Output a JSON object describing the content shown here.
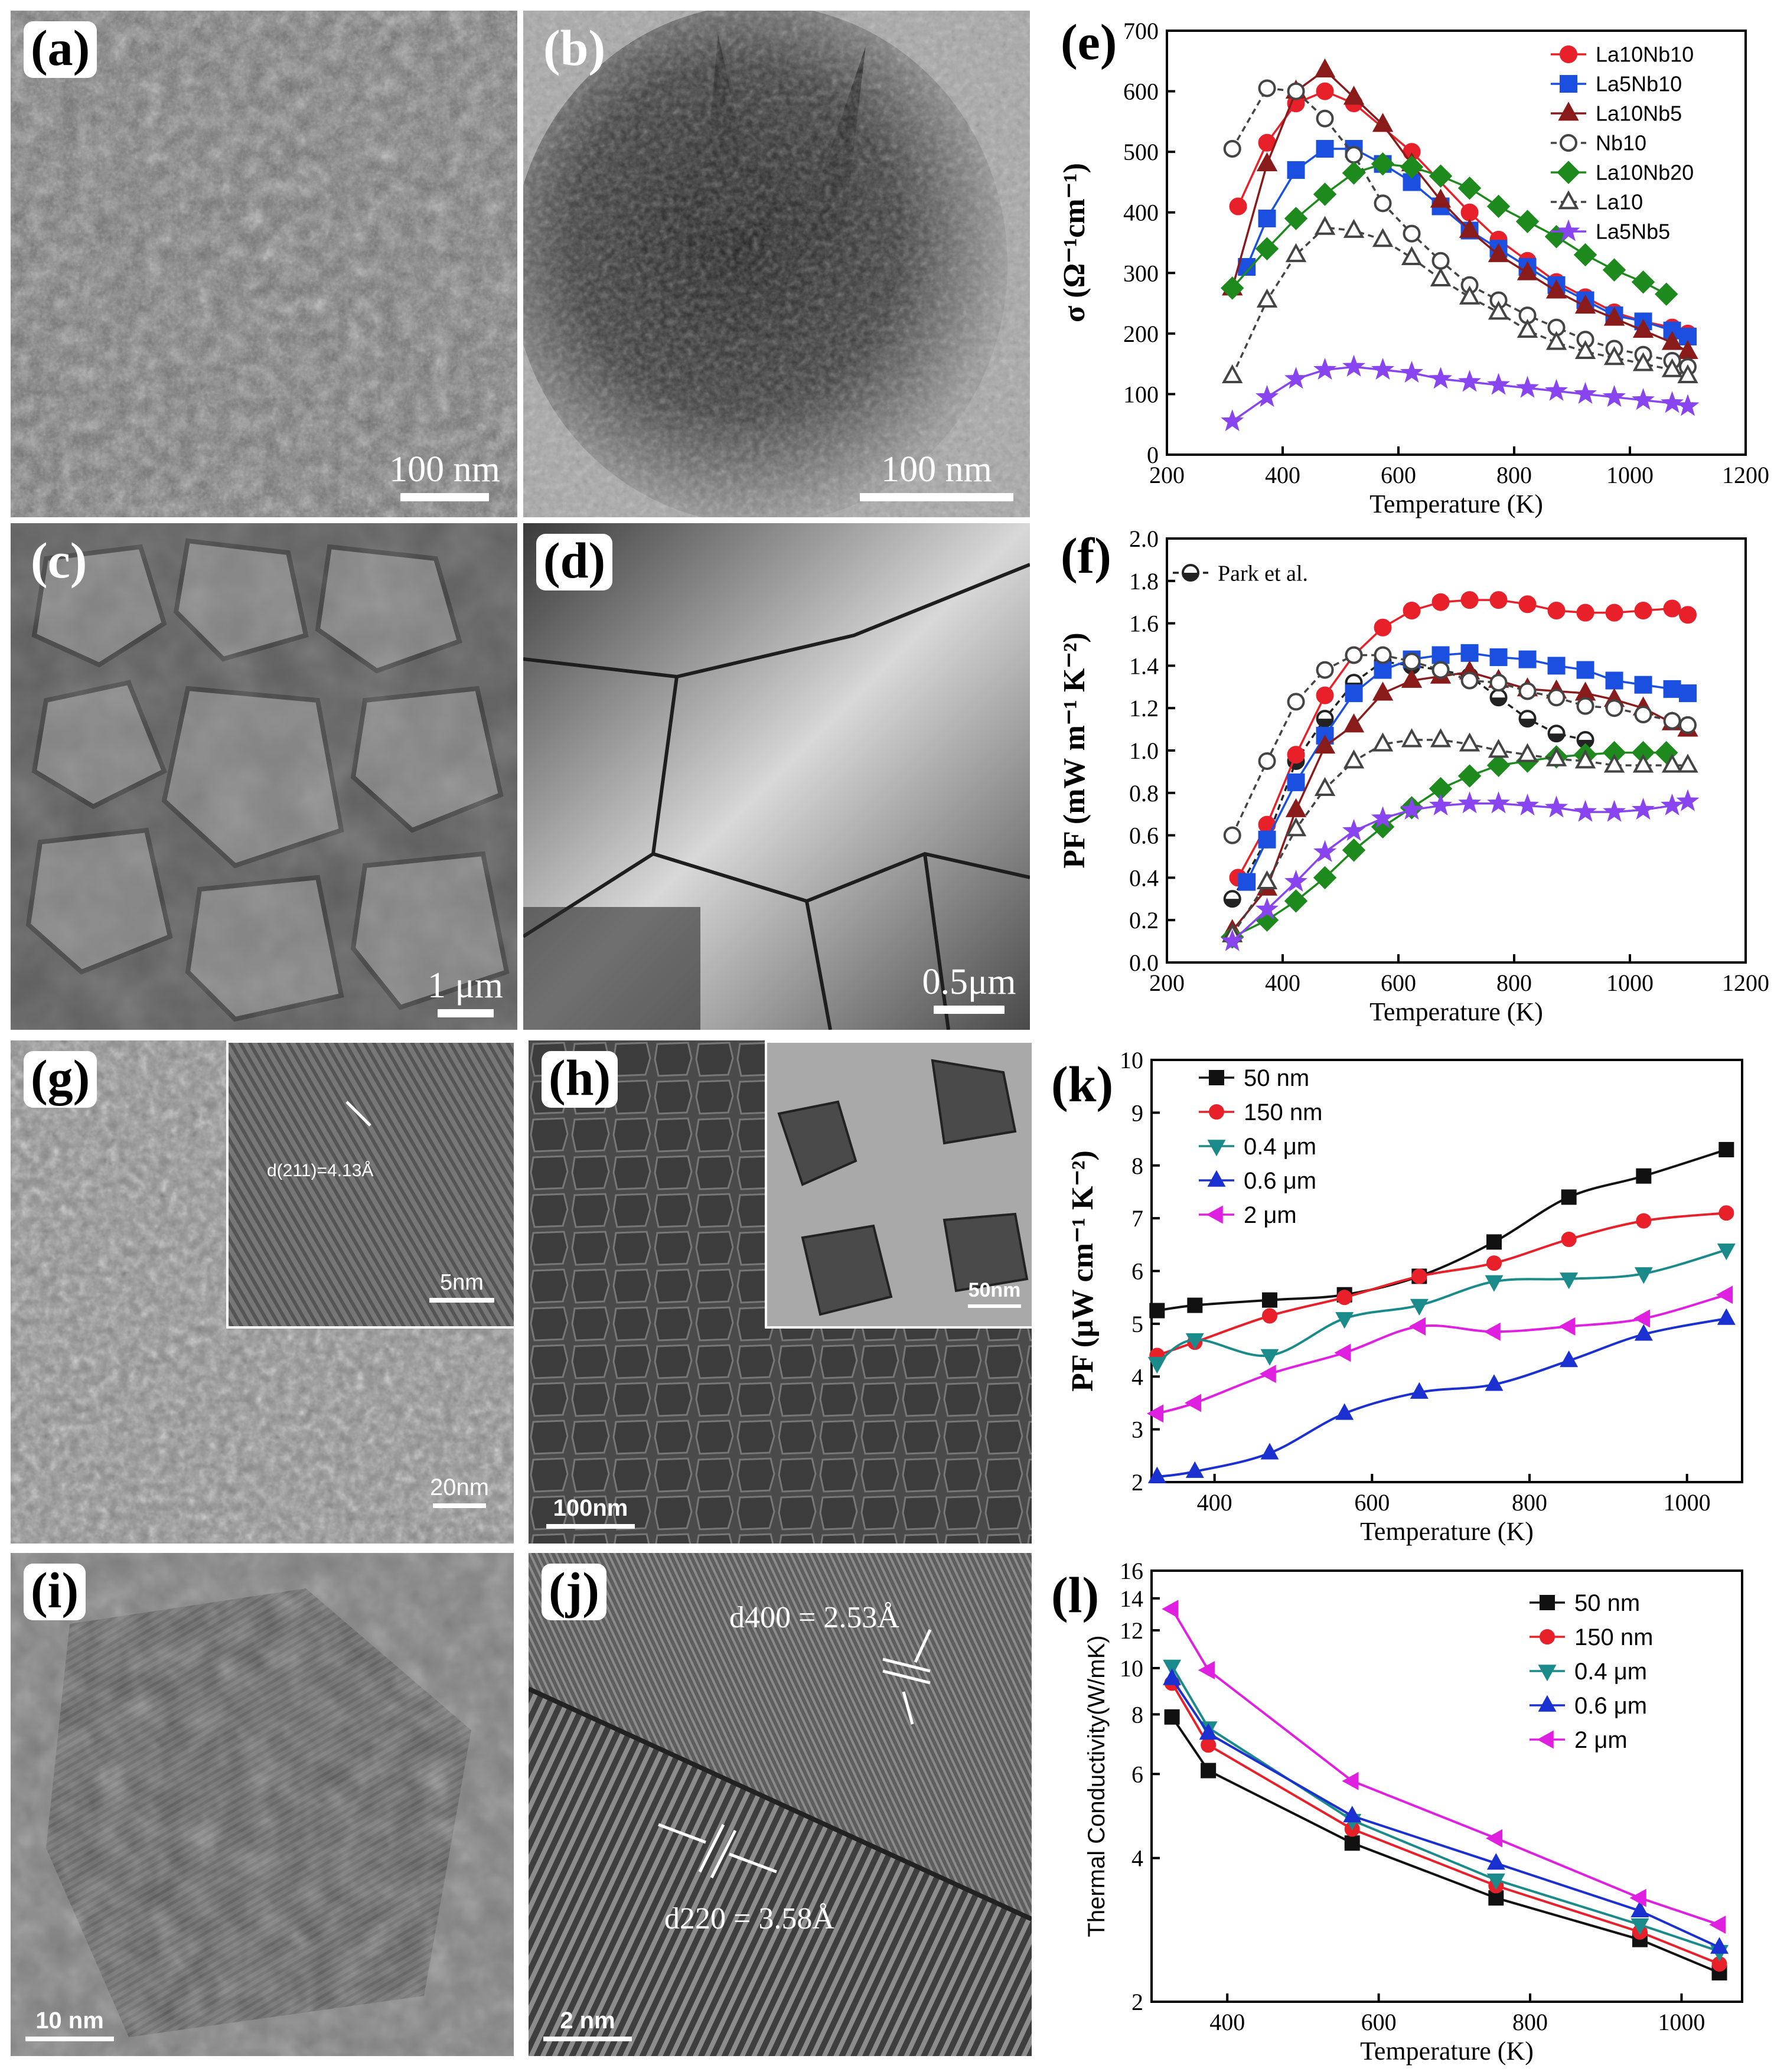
{
  "panels": {
    "a": {
      "label": "(a)",
      "scale": "100 nm"
    },
    "b": {
      "label": "(b)",
      "scale": "100 nm"
    },
    "c": {
      "label": "(c)",
      "scale": "1 μm"
    },
    "d": {
      "label": "(d)",
      "scale": "0.5μm"
    },
    "g": {
      "label": "(g)",
      "scale": "20nm",
      "inset_scale": "5nm",
      "inset_annotation": "d(211)=4.13Å"
    },
    "h": {
      "label": "(h)",
      "scale": "100nm",
      "inset_scale": "50nm"
    },
    "i": {
      "label": "(i)",
      "scale": "10 nm"
    },
    "j": {
      "label": "(j)",
      "scale": "2 nm",
      "annot1": "d400 = 2.53Å",
      "annot2": "d220 = 3.58Å"
    }
  },
  "chart_data": [
    {
      "id": "e",
      "panel_label": "(e)",
      "type": "line",
      "xlabel": "Temperature (K)",
      "ylabel": "σ (Ω⁻¹cm⁻¹)",
      "xlim": [
        200,
        1200
      ],
      "ylim": [
        0,
        700
      ],
      "xticks": [
        200,
        400,
        600,
        800,
        1000,
        1200
      ],
      "yticks": [
        0,
        100,
        200,
        300,
        400,
        500,
        600,
        700
      ],
      "legend_position": "top-right",
      "series": [
        {
          "name": "La10Nb10",
          "color": "#e8202a",
          "marker": "circle",
          "filled": true,
          "dashed": false,
          "x": [
            323,
            373,
            423,
            473,
            523,
            623,
            723,
            773,
            823,
            873,
            923,
            973,
            1023,
            1073,
            1100
          ],
          "y": [
            410,
            515,
            580,
            600,
            580,
            500,
            400,
            355,
            320,
            285,
            260,
            235,
            220,
            210,
            200
          ]
        },
        {
          "name": "La5Nb10",
          "color": "#1a4fe0",
          "marker": "square",
          "filled": true,
          "dashed": false,
          "x": [
            338,
            373,
            423,
            473,
            523,
            573,
            623,
            673,
            723,
            773,
            823,
            873,
            923,
            973,
            1023,
            1073,
            1100
          ],
          "y": [
            310,
            390,
            470,
            505,
            505,
            480,
            450,
            410,
            370,
            340,
            310,
            280,
            255,
            230,
            220,
            205,
            195
          ]
        },
        {
          "name": "La10Nb5",
          "color": "#8a1b1b",
          "marker": "triangle",
          "filled": true,
          "dashed": false,
          "x": [
            313,
            373,
            423,
            473,
            523,
            573,
            623,
            673,
            723,
            773,
            823,
            873,
            923,
            973,
            1023,
            1073,
            1100
          ],
          "y": [
            275,
            480,
            600,
            635,
            590,
            545,
            480,
            420,
            370,
            330,
            300,
            270,
            245,
            225,
            205,
            185,
            170
          ]
        },
        {
          "name": "Nb10",
          "color": "#444444",
          "marker": "circle",
          "filled": false,
          "dashed": true,
          "x": [
            313,
            373,
            423,
            473,
            523,
            573,
            623,
            673,
            723,
            773,
            823,
            873,
            923,
            973,
            1023,
            1073,
            1100
          ],
          "y": [
            505,
            605,
            600,
            555,
            495,
            415,
            365,
            320,
            280,
            255,
            230,
            210,
            190,
            175,
            165,
            155,
            145
          ]
        },
        {
          "name": "La10Nb20",
          "color": "#1e8a1e",
          "marker": "diamond",
          "filled": true,
          "dashed": false,
          "x": [
            313,
            373,
            423,
            473,
            523,
            573,
            623,
            673,
            723,
            773,
            823,
            873,
            923,
            973,
            1023,
            1063
          ],
          "y": [
            275,
            340,
            390,
            430,
            465,
            480,
            475,
            460,
            440,
            410,
            385,
            360,
            330,
            305,
            285,
            265
          ]
        },
        {
          "name": "La10",
          "color": "#444444",
          "marker": "triangle",
          "filled": false,
          "dashed": true,
          "x": [
            313,
            373,
            423,
            473,
            523,
            573,
            623,
            673,
            723,
            773,
            823,
            873,
            923,
            973,
            1023,
            1073,
            1100
          ],
          "y": [
            130,
            255,
            330,
            375,
            370,
            355,
            325,
            290,
            260,
            235,
            205,
            185,
            170,
            160,
            150,
            140,
            130
          ]
        },
        {
          "name": "La5Nb5",
          "color": "#8844ee",
          "marker": "star",
          "filled": true,
          "dashed": false,
          "x": [
            313,
            373,
            423,
            473,
            523,
            573,
            623,
            673,
            723,
            773,
            823,
            873,
            923,
            973,
            1023,
            1073,
            1100
          ],
          "y": [
            55,
            95,
            125,
            140,
            145,
            140,
            135,
            125,
            120,
            115,
            110,
            105,
            100,
            95,
            90,
            85,
            80
          ]
        }
      ]
    },
    {
      "id": "f",
      "panel_label": "(f)",
      "type": "line",
      "xlabel": "Temperature (K)",
      "ylabel": "PF (mW m⁻¹ K⁻²)",
      "xlim": [
        200,
        1200
      ],
      "ylim": [
        0.0,
        2.0
      ],
      "xticks": [
        200,
        400,
        600,
        800,
        1000,
        1200
      ],
      "yticks": [
        0.0,
        0.2,
        0.4,
        0.6,
        0.8,
        1.0,
        1.2,
        1.4,
        1.6,
        1.8,
        2.0
      ],
      "legend_position": "top-left",
      "series": [
        {
          "name": "Park et al.",
          "color": "#222222",
          "marker": "halfcircle",
          "filled": false,
          "dashed": true,
          "legend": true,
          "x": [
            313,
            373,
            423,
            473,
            523,
            573,
            623,
            673,
            723,
            773,
            823,
            873,
            923
          ],
          "y": [
            0.3,
            0.58,
            0.95,
            1.15,
            1.32,
            1.42,
            1.4,
            1.38,
            1.35,
            1.25,
            1.15,
            1.08,
            1.05
          ]
        },
        {
          "name": "La10Nb10",
          "color": "#e8202a",
          "marker": "circle",
          "filled": true,
          "dashed": false,
          "legend": false,
          "x": [
            323,
            373,
            423,
            473,
            523,
            573,
            623,
            673,
            723,
            773,
            823,
            873,
            923,
            973,
            1023,
            1073,
            1100
          ],
          "y": [
            0.4,
            0.65,
            0.98,
            1.26,
            1.45,
            1.58,
            1.66,
            1.7,
            1.71,
            1.71,
            1.69,
            1.66,
            1.65,
            1.65,
            1.66,
            1.67,
            1.64
          ]
        },
        {
          "name": "La5Nb10",
          "color": "#1a4fe0",
          "marker": "square",
          "filled": true,
          "dashed": false,
          "legend": false,
          "x": [
            338,
            373,
            423,
            473,
            523,
            573,
            623,
            673,
            723,
            773,
            823,
            873,
            923,
            973,
            1023,
            1073,
            1100
          ],
          "y": [
            0.38,
            0.58,
            0.85,
            1.07,
            1.27,
            1.38,
            1.43,
            1.45,
            1.46,
            1.44,
            1.43,
            1.4,
            1.38,
            1.33,
            1.31,
            1.29,
            1.27
          ]
        },
        {
          "name": "La10Nb5",
          "color": "#8a1b1b",
          "marker": "triangle",
          "filled": true,
          "dashed": false,
          "legend": false,
          "x": [
            313,
            373,
            423,
            473,
            523,
            573,
            623,
            673,
            723,
            773,
            823,
            873,
            923,
            973,
            1023,
            1073,
            1100
          ],
          "y": [
            0.15,
            0.35,
            0.72,
            1.02,
            1.12,
            1.27,
            1.33,
            1.35,
            1.37,
            1.33,
            1.29,
            1.28,
            1.27,
            1.24,
            1.2,
            1.13,
            1.1
          ]
        },
        {
          "name": "Nb10",
          "color": "#444444",
          "marker": "circle",
          "filled": false,
          "dashed": true,
          "legend": false,
          "x": [
            313,
            373,
            423,
            473,
            523,
            573,
            623,
            673,
            723,
            773,
            823,
            873,
            923,
            973,
            1023,
            1073,
            1100
          ],
          "y": [
            0.6,
            0.95,
            1.23,
            1.38,
            1.45,
            1.45,
            1.42,
            1.38,
            1.33,
            1.32,
            1.28,
            1.25,
            1.21,
            1.2,
            1.17,
            1.14,
            1.12
          ]
        },
        {
          "name": "La10Nb20",
          "color": "#1e8a1e",
          "marker": "diamond",
          "filled": true,
          "dashed": false,
          "legend": false,
          "x": [
            313,
            373,
            423,
            473,
            523,
            573,
            623,
            673,
            723,
            773,
            823,
            873,
            923,
            973,
            1023,
            1063
          ],
          "y": [
            0.12,
            0.2,
            0.29,
            0.4,
            0.53,
            0.64,
            0.73,
            0.82,
            0.88,
            0.93,
            0.95,
            0.97,
            0.98,
            0.99,
            0.99,
            0.99
          ]
        },
        {
          "name": "La10",
          "color": "#444444",
          "marker": "triangle",
          "filled": false,
          "dashed": true,
          "legend": false,
          "x": [
            313,
            373,
            423,
            473,
            523,
            573,
            623,
            673,
            723,
            773,
            823,
            873,
            923,
            973,
            1023,
            1073,
            1100
          ],
          "y": [
            0.13,
            0.38,
            0.63,
            0.82,
            0.95,
            1.03,
            1.05,
            1.05,
            1.03,
            1.0,
            0.98,
            0.96,
            0.95,
            0.93,
            0.93,
            0.93,
            0.93
          ]
        },
        {
          "name": "La5Nb5",
          "color": "#8844ee",
          "marker": "star",
          "filled": true,
          "dashed": false,
          "legend": false,
          "x": [
            313,
            373,
            423,
            473,
            523,
            573,
            623,
            673,
            723,
            773,
            823,
            873,
            923,
            973,
            1023,
            1073,
            1100
          ],
          "y": [
            0.1,
            0.25,
            0.38,
            0.52,
            0.62,
            0.68,
            0.72,
            0.74,
            0.75,
            0.75,
            0.74,
            0.73,
            0.71,
            0.71,
            0.72,
            0.74,
            0.76
          ]
        }
      ]
    },
    {
      "id": "k",
      "panel_label": "(k)",
      "type": "line",
      "xlabel": "Temperature (K)",
      "ylabel": "PF (μW cm⁻¹ K⁻²)",
      "xlim": [
        320,
        1070
      ],
      "ylim": [
        2,
        10
      ],
      "xticks": [
        400,
        600,
        800,
        1000
      ],
      "yticks": [
        2,
        3,
        4,
        5,
        6,
        7,
        8,
        9,
        10
      ],
      "legend_position": "top-left",
      "series": [
        {
          "name": "50 nm",
          "color": "#111111",
          "marker": "square",
          "x": [
            327,
            375,
            470,
            565,
            660,
            755,
            850,
            945,
            1050
          ],
          "y": [
            5.25,
            5.35,
            5.45,
            5.55,
            5.9,
            6.55,
            7.4,
            7.8,
            8.3
          ]
        },
        {
          "name": "150 nm",
          "color": "#e8202a",
          "marker": "circle",
          "x": [
            327,
            375,
            470,
            565,
            660,
            755,
            850,
            945,
            1050
          ],
          "y": [
            4.4,
            4.65,
            5.15,
            5.5,
            5.9,
            6.15,
            6.6,
            6.95,
            7.1
          ]
        },
        {
          "name": "0.4 μm",
          "color": "#1b8a8a",
          "marker": "triangle-down",
          "x": [
            327,
            375,
            470,
            565,
            660,
            755,
            850,
            945,
            1050
          ],
          "y": [
            4.25,
            4.7,
            4.4,
            5.1,
            5.35,
            5.8,
            5.85,
            5.95,
            6.4
          ]
        },
        {
          "name": "0.6 μm",
          "color": "#1a30d0",
          "marker": "triangle",
          "x": [
            327,
            375,
            470,
            565,
            660,
            755,
            850,
            945,
            1050
          ],
          "y": [
            2.1,
            2.2,
            2.55,
            3.3,
            3.7,
            3.85,
            4.3,
            4.8,
            5.1
          ]
        },
        {
          "name": "2 μm",
          "color": "#e020e0",
          "marker": "triangle-left",
          "x": [
            327,
            375,
            470,
            565,
            660,
            755,
            850,
            945,
            1050
          ],
          "y": [
            3.3,
            3.5,
            4.05,
            4.45,
            4.95,
            4.85,
            4.95,
            5.1,
            5.55
          ]
        }
      ]
    },
    {
      "id": "l",
      "panel_label": "(l)",
      "type": "line",
      "xlabel": "Temperature (K)",
      "ylabel": "Thermal Conductivity(W/mK)",
      "xlim": [
        300,
        1080
      ],
      "ylim": [
        2,
        16
      ],
      "yscale": "log",
      "xticks": [
        400,
        600,
        800,
        1000
      ],
      "yticks": [
        2,
        4,
        6,
        8,
        10,
        12,
        14,
        16
      ],
      "legend_position": "top-right",
      "series": [
        {
          "name": "50 nm",
          "color": "#111111",
          "marker": "square",
          "x": [
            327,
            375,
            565,
            755,
            945,
            1050
          ],
          "y": [
            7.9,
            6.1,
            4.3,
            3.3,
            2.7,
            2.3
          ]
        },
        {
          "name": "150 nm",
          "color": "#e8202a",
          "marker": "circle",
          "x": [
            327,
            375,
            565,
            755,
            945,
            1050
          ],
          "y": [
            9.3,
            6.9,
            4.6,
            3.5,
            2.8,
            2.4
          ]
        },
        {
          "name": "0.4 μm",
          "color": "#1b8a8a",
          "marker": "triangle-down",
          "x": [
            327,
            375,
            565,
            755,
            945,
            1050
          ],
          "y": [
            10.1,
            7.5,
            4.8,
            3.6,
            2.9,
            2.55
          ]
        },
        {
          "name": "0.6 μm",
          "color": "#1a30d0",
          "marker": "triangle",
          "x": [
            327,
            375,
            565,
            755,
            945,
            1050
          ],
          "y": [
            9.5,
            7.3,
            4.9,
            3.9,
            3.1,
            2.6
          ]
        },
        {
          "name": "2 μm",
          "color": "#e020e0",
          "marker": "triangle-left",
          "x": [
            327,
            375,
            565,
            755,
            945,
            1050
          ],
          "y": [
            13.3,
            9.9,
            5.8,
            4.4,
            3.3,
            2.9
          ]
        }
      ]
    }
  ]
}
